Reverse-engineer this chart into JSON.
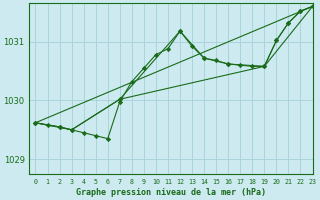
{
  "title": "Graphe pression niveau de la mer (hPa)",
  "background_color": "#cceaf0",
  "grid_color": "#aad4dd",
  "line_color": "#1a6b1a",
  "xlim": [
    -0.5,
    23
  ],
  "ylim": [
    1028.75,
    1031.65
  ],
  "yticks": [
    1029,
    1030,
    1031
  ],
  "xticks": [
    0,
    1,
    2,
    3,
    4,
    5,
    6,
    7,
    8,
    9,
    10,
    11,
    12,
    13,
    14,
    15,
    16,
    17,
    18,
    19,
    20,
    21,
    22,
    23
  ],
  "line1": {
    "x": [
      0,
      1,
      2,
      3,
      4,
      5,
      6,
      7,
      8,
      9,
      10,
      11,
      12,
      13,
      14,
      15,
      16,
      17,
      18,
      19,
      20,
      21,
      22,
      23
    ],
    "y": [
      1029.62,
      1029.58,
      1029.55,
      1029.5,
      1029.45,
      1029.4,
      1029.35,
      1029.98,
      1030.32,
      1030.55,
      1030.78,
      1030.88,
      1031.18,
      1030.92,
      1030.72,
      1030.68,
      1030.62,
      1030.6,
      1030.58,
      1030.58,
      1031.02,
      1031.32,
      1031.52,
      1031.6
    ],
    "marker": "D",
    "markersize": 2.2
  },
  "line2": {
    "x": [
      0,
      3,
      7,
      23
    ],
    "y": [
      1029.62,
      1029.5,
      1030.02,
      1031.6
    ],
    "marker": "D",
    "markersize": 2.2
  },
  "line3": {
    "x": [
      0,
      3,
      7,
      16,
      19,
      23
    ],
    "y": [
      1029.62,
      1029.5,
      1030.02,
      1030.6,
      1030.58,
      1031.6
    ],
    "marker": "D",
    "markersize": 2.2
  },
  "line4": {
    "x": [
      0,
      2,
      3,
      7,
      12,
      14,
      16,
      19,
      20,
      21,
      22,
      23
    ],
    "y": [
      1029.62,
      1029.55,
      1029.5,
      1030.02,
      1031.18,
      1030.72,
      1030.62,
      1030.58,
      1031.02,
      1031.32,
      1031.52,
      1031.6
    ],
    "marker": "D",
    "markersize": 2.2
  }
}
